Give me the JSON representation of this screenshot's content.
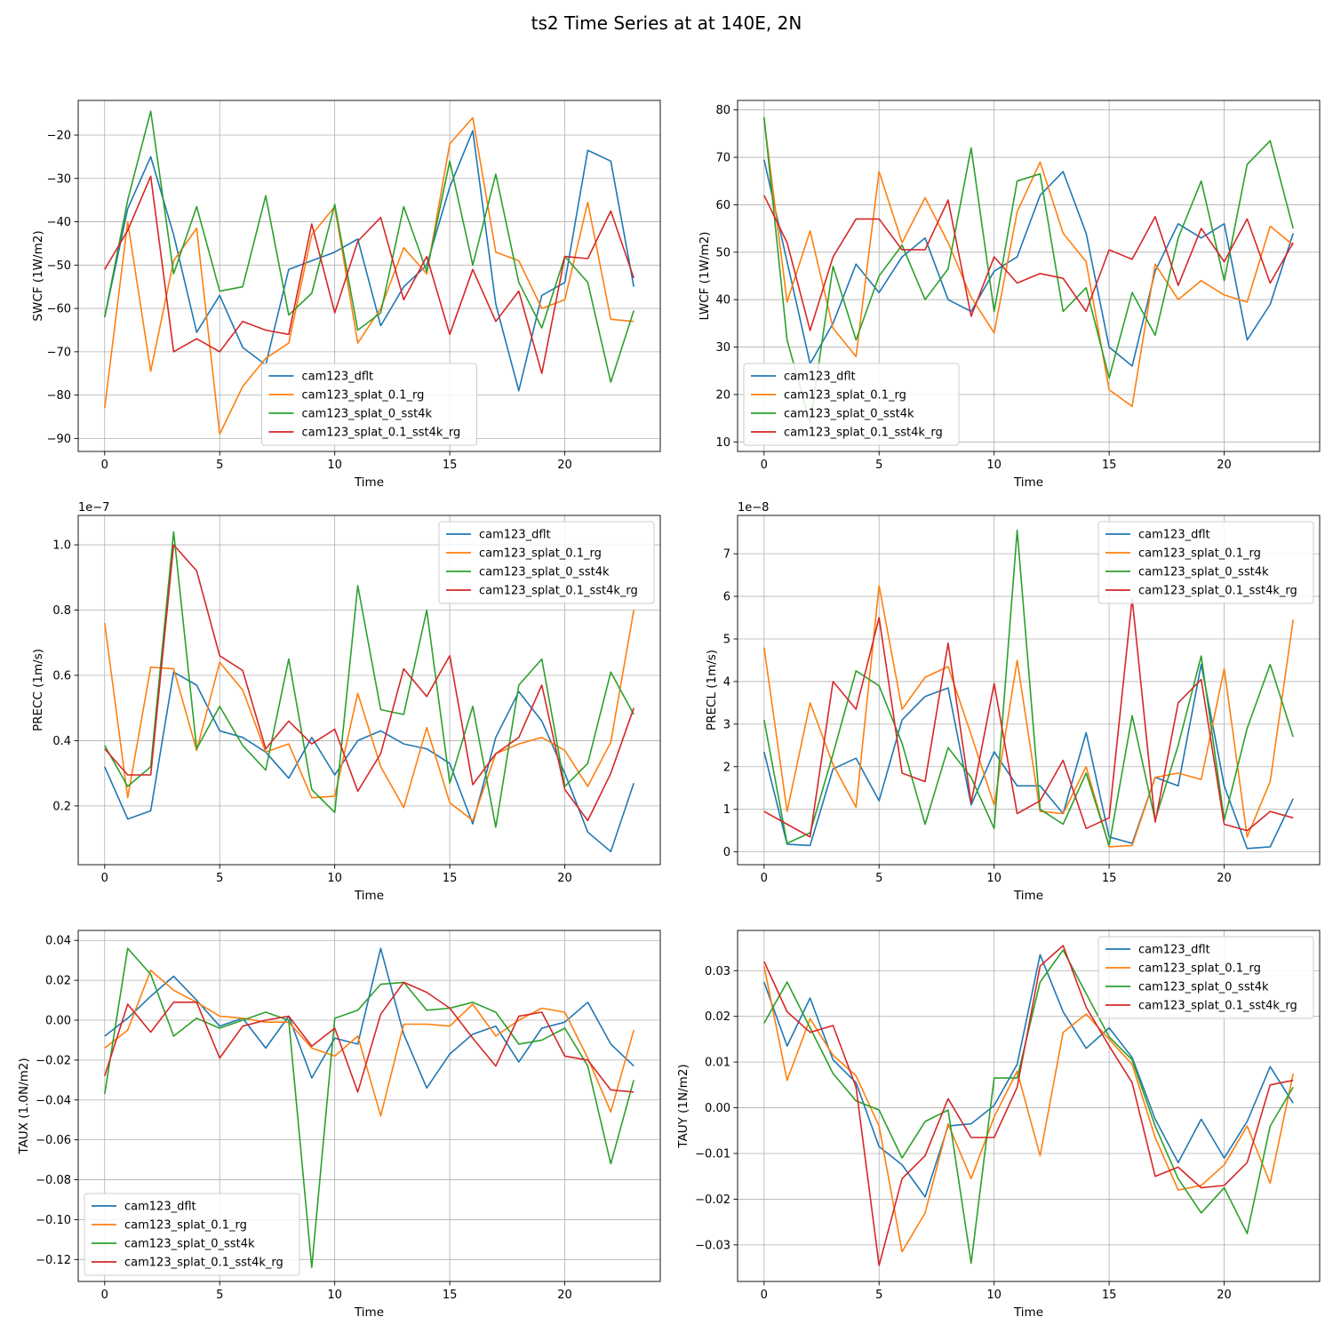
{
  "figure": {
    "title": "ts2 Time Series at at 140E, 2N"
  },
  "series_colors": [
    "#1f77b4",
    "#ff7f0e",
    "#2ca02c",
    "#d62728"
  ],
  "chart_data": [
    {
      "type": "line",
      "title": "",
      "xlabel": "Time",
      "ylabel": "SWCF (1W/m2)",
      "xlim": [
        -1.15,
        24.15
      ],
      "ylim": [
        -93,
        -12
      ],
      "xticks": [
        0,
        5,
        10,
        15,
        20
      ],
      "xtick_labels": [
        "0",
        "5",
        "10",
        "15",
        "20"
      ],
      "yticks": [
        -90,
        -80,
        -70,
        -60,
        -50,
        -40,
        -30,
        -20
      ],
      "ytick_labels": [
        "−90",
        "−80",
        "−70",
        "−60",
        "−50",
        "−40",
        "−30",
        "−20"
      ],
      "exponent_label": "",
      "grid": true,
      "legend_position": "lower-center",
      "x": [
        0,
        1,
        2,
        3,
        4,
        5,
        6,
        7,
        8,
        9,
        10,
        11,
        12,
        13,
        14,
        15,
        16,
        17,
        18,
        19,
        20,
        21,
        22,
        23
      ],
      "series": [
        {
          "name": "cam123_dflt",
          "values": [
            -62,
            -37,
            -25,
            -43,
            -65.5,
            -57,
            -69,
            -73,
            -51,
            -49,
            -47,
            -44,
            -64,
            -55,
            -50,
            -32,
            -19,
            -59,
            -79,
            -57,
            -54,
            -23.5,
            -26,
            -55
          ]
        },
        {
          "name": "cam123_splat_0.1_rg",
          "values": [
            -83,
            -40,
            -74.5,
            -49,
            -41.5,
            -89,
            -78,
            -71.5,
            -68,
            -43,
            -36.5,
            -68,
            -60,
            -46,
            -52,
            -22,
            -16,
            -47,
            -49,
            -60,
            -58,
            -35.5,
            -62.5,
            -63
          ]
        },
        {
          "name": "cam123_splat_0_sst4k",
          "values": [
            -62,
            -35,
            -14.5,
            -52,
            -36.5,
            -56,
            -55,
            -34,
            -61.5,
            -56.5,
            -36,
            -65,
            -61,
            -36.5,
            -51.5,
            -26,
            -50,
            -29,
            -54,
            -64.5,
            -48,
            -54,
            -77,
            -60.5
          ]
        },
        {
          "name": "cam123_splat_0.1_sst4k_rg",
          "values": [
            -51,
            -42,
            -29.5,
            -70,
            -67,
            -70,
            -63,
            -65,
            -66,
            -40.5,
            -61,
            -44.5,
            -39,
            -58,
            -48,
            -66,
            -51,
            -63,
            -56,
            -75,
            -48,
            -48.5,
            -37.5,
            -53
          ]
        }
      ]
    },
    {
      "type": "line",
      "title": "",
      "xlabel": "Time",
      "ylabel": "LWCF (1W/m2)",
      "xlim": [
        -1.15,
        24.15
      ],
      "ylim": [
        8,
        82
      ],
      "xticks": [
        0,
        5,
        10,
        15,
        20
      ],
      "xtick_labels": [
        "0",
        "5",
        "10",
        "15",
        "20"
      ],
      "yticks": [
        10,
        20,
        30,
        40,
        50,
        60,
        70,
        80
      ],
      "ytick_labels": [
        "10",
        "20",
        "30",
        "40",
        "50",
        "60",
        "70",
        "80"
      ],
      "exponent_label": "",
      "grid": true,
      "legend_position": "lower-left",
      "x": [
        0,
        1,
        2,
        3,
        4,
        5,
        6,
        7,
        8,
        9,
        10,
        11,
        12,
        13,
        14,
        15,
        16,
        17,
        18,
        19,
        20,
        21,
        22,
        23
      ],
      "series": [
        {
          "name": "cam123_dflt",
          "values": [
            69.5,
            48,
            26.5,
            35,
            47.5,
            41.5,
            49,
            53,
            40,
            37.5,
            46,
            49,
            62,
            67,
            54,
            30,
            26,
            46,
            56,
            53,
            56,
            31.5,
            39,
            54
          ]
        },
        {
          "name": "cam123_splat_0.1_rg",
          "values": [
            78,
            39.5,
            54.5,
            34,
            28,
            67,
            52,
            61.5,
            52,
            40.5,
            33,
            58.5,
            69,
            54,
            48,
            21,
            17.5,
            47.5,
            40,
            44,
            41,
            39.5,
            55.5,
            51.5
          ]
        },
        {
          "name": "cam123_splat_0_sst4k",
          "values": [
            78.5,
            31.5,
            14,
            47,
            31.5,
            45,
            51.5,
            40,
            46.5,
            72,
            37.5,
            65,
            66.5,
            37.5,
            42.5,
            23.5,
            41.5,
            32.5,
            53,
            65,
            44,
            68.5,
            73.5,
            55
          ]
        },
        {
          "name": "cam123_splat_0.1_sst4k_rg",
          "values": [
            62,
            52,
            33.5,
            49,
            57,
            57,
            50.5,
            50.5,
            61,
            36.5,
            49,
            43.5,
            45.5,
            44.5,
            37.5,
            50.5,
            48.5,
            57.5,
            43,
            55,
            48,
            57,
            43.5,
            52
          ]
        }
      ]
    },
    {
      "type": "line",
      "title": "",
      "xlabel": "Time",
      "ylabel": "PRECC (1m/s)",
      "xlim": [
        -1.15,
        24.15
      ],
      "ylim": [
        0.02,
        1.09
      ],
      "xticks": [
        0,
        5,
        10,
        15,
        20
      ],
      "xtick_labels": [
        "0",
        "5",
        "10",
        "15",
        "20"
      ],
      "yticks": [
        0.2,
        0.4,
        0.6,
        0.8,
        1.0
      ],
      "ytick_labels": [
        "0.2",
        "0.4",
        "0.6",
        "0.8",
        "1.0"
      ],
      "exponent_label": "1e−7",
      "grid": true,
      "legend_position": "upper-right",
      "x": [
        0,
        1,
        2,
        3,
        4,
        5,
        6,
        7,
        8,
        9,
        10,
        11,
        12,
        13,
        14,
        15,
        16,
        17,
        18,
        19,
        20,
        21,
        22,
        23
      ],
      "series": [
        {
          "name": "cam123_dflt",
          "values": [
            0.32,
            0.16,
            0.185,
            0.61,
            0.57,
            0.43,
            0.41,
            0.365,
            0.285,
            0.41,
            0.295,
            0.4,
            0.43,
            0.39,
            0.375,
            0.33,
            0.145,
            0.41,
            0.55,
            0.46,
            0.3,
            0.12,
            0.06,
            0.27
          ]
        },
        {
          "name": "cam123_splat_0.1_rg",
          "values": [
            0.76,
            0.225,
            0.625,
            0.62,
            0.37,
            0.64,
            0.555,
            0.365,
            0.39,
            0.225,
            0.23,
            0.545,
            0.32,
            0.195,
            0.44,
            0.21,
            0.155,
            0.36,
            0.39,
            0.41,
            0.37,
            0.26,
            0.395,
            0.8
          ]
        },
        {
          "name": "cam123_splat_0_sst4k",
          "values": [
            0.385,
            0.26,
            0.32,
            1.04,
            0.375,
            0.505,
            0.385,
            0.31,
            0.65,
            0.25,
            0.18,
            0.875,
            0.495,
            0.48,
            0.8,
            0.27,
            0.505,
            0.135,
            0.57,
            0.65,
            0.26,
            0.33,
            0.61,
            0.48
          ]
        },
        {
          "name": "cam123_splat_0.1_sst4k_rg",
          "values": [
            0.375,
            0.295,
            0.295,
            1.0,
            0.92,
            0.66,
            0.615,
            0.375,
            0.46,
            0.39,
            0.435,
            0.245,
            0.36,
            0.62,
            0.535,
            0.66,
            0.265,
            0.36,
            0.41,
            0.57,
            0.25,
            0.155,
            0.3,
            0.5
          ]
        }
      ]
    },
    {
      "type": "line",
      "title": "",
      "xlabel": "Time",
      "ylabel": "PRECL (1m/s)",
      "xlim": [
        -1.15,
        24.15
      ],
      "ylim": [
        -0.3,
        7.9
      ],
      "xticks": [
        0,
        5,
        10,
        15,
        20
      ],
      "xtick_labels": [
        "0",
        "5",
        "10",
        "15",
        "20"
      ],
      "yticks": [
        0,
        1,
        2,
        3,
        4,
        5,
        6,
        7
      ],
      "ytick_labels": [
        "0",
        "1",
        "2",
        "3",
        "4",
        "5",
        "6",
        "7"
      ],
      "exponent_label": "1e−8",
      "grid": true,
      "legend_position": "upper-right",
      "x": [
        0,
        1,
        2,
        3,
        4,
        5,
        6,
        7,
        8,
        9,
        10,
        11,
        12,
        13,
        14,
        15,
        16,
        17,
        18,
        19,
        20,
        21,
        22,
        23
      ],
      "series": [
        {
          "name": "cam123_dflt",
          "values": [
            2.35,
            0.18,
            0.15,
            1.95,
            2.2,
            1.2,
            3.1,
            3.65,
            3.85,
            1.1,
            2.35,
            1.55,
            1.55,
            0.9,
            2.8,
            0.35,
            0.2,
            1.75,
            1.55,
            4.4,
            1.55,
            0.08,
            0.12,
            1.25
          ]
        },
        {
          "name": "cam123_splat_0.1_rg",
          "values": [
            4.8,
            0.95,
            3.5,
            2.05,
            1.05,
            6.25,
            3.35,
            4.1,
            4.35,
            2.75,
            1.1,
            4.5,
            0.95,
            0.9,
            2.0,
            0.12,
            0.15,
            1.75,
            1.85,
            1.7,
            4.3,
            0.35,
            1.65,
            5.45
          ]
        },
        {
          "name": "cam123_splat_0_sst4k",
          "values": [
            3.1,
            0.2,
            0.45,
            2.3,
            4.25,
            3.9,
            2.55,
            0.65,
            2.45,
            1.75,
            0.55,
            7.55,
            1.0,
            0.65,
            1.85,
            0.15,
            3.2,
            0.75,
            2.5,
            4.6,
            0.75,
            2.9,
            4.4,
            2.7
          ]
        },
        {
          "name": "cam123_splat_0.1_sst4k_rg",
          "values": [
            0.95,
            0.65,
            0.35,
            4.0,
            3.35,
            5.5,
            1.85,
            1.65,
            4.9,
            1.15,
            3.95,
            0.9,
            1.2,
            2.15,
            0.55,
            0.8,
            5.95,
            0.7,
            3.5,
            4.05,
            0.65,
            0.5,
            0.95,
            0.8
          ]
        }
      ]
    },
    {
      "type": "line",
      "title": "",
      "xlabel": "Time",
      "ylabel": "TAUX (1.0N/m2)",
      "xlim": [
        -1.15,
        24.15
      ],
      "ylim": [
        -0.131,
        0.045
      ],
      "xticks": [
        0,
        5,
        10,
        15,
        20
      ],
      "xtick_labels": [
        "0",
        "5",
        "10",
        "15",
        "20"
      ],
      "yticks": [
        -0.12,
        -0.1,
        -0.08,
        -0.06,
        -0.04,
        -0.02,
        0.0,
        0.02,
        0.04
      ],
      "ytick_labels": [
        "−0.12",
        "−0.10",
        "−0.08",
        "−0.06",
        "−0.04",
        "−0.02",
        "0.00",
        "0.02",
        "0.04"
      ],
      "exponent_label": "",
      "grid": true,
      "legend_position": "lower-left",
      "x": [
        0,
        1,
        2,
        3,
        4,
        5,
        6,
        7,
        8,
        9,
        10,
        11,
        12,
        13,
        14,
        15,
        16,
        17,
        18,
        19,
        20,
        21,
        22,
        23
      ],
      "series": [
        {
          "name": "cam123_dflt",
          "values": [
            -0.008,
            0.001,
            0.012,
            0.022,
            0.01,
            -0.003,
            0.001,
            -0.014,
            0.002,
            -0.029,
            -0.009,
            -0.012,
            0.036,
            -0.007,
            -0.034,
            -0.017,
            -0.007,
            -0.003,
            -0.021,
            -0.004,
            -0.001,
            0.009,
            -0.012,
            -0.023
          ]
        },
        {
          "name": "cam123_splat_0.1_rg",
          "values": [
            -0.014,
            -0.005,
            0.025,
            0.015,
            0.009,
            0.002,
            0.001,
            -0.001,
            -0.001,
            -0.014,
            -0.018,
            -0.008,
            -0.048,
            -0.002,
            -0.002,
            -0.003,
            0.008,
            -0.008,
            0.0,
            0.006,
            0.004,
            -0.019,
            -0.046,
            -0.005
          ]
        },
        {
          "name": "cam123_splat_0_sst4k",
          "values": [
            -0.037,
            0.036,
            0.023,
            -0.008,
            0.001,
            -0.004,
            0.0,
            0.004,
            0.0,
            -0.124,
            0.001,
            0.005,
            0.018,
            0.019,
            0.005,
            0.006,
            0.009,
            0.004,
            -0.012,
            -0.01,
            -0.004,
            -0.023,
            -0.072,
            -0.03
          ]
        },
        {
          "name": "cam123_splat_0.1_sst4k_rg",
          "values": [
            -0.028,
            0.008,
            -0.006,
            0.009,
            0.009,
            -0.019,
            -0.003,
            0.0,
            0.002,
            -0.013,
            -0.004,
            -0.036,
            0.003,
            0.019,
            0.014,
            0.006,
            -0.009,
            -0.023,
            0.002,
            0.004,
            -0.018,
            -0.02,
            -0.035,
            -0.036
          ]
        }
      ]
    },
    {
      "type": "line",
      "title": "",
      "xlabel": "Time",
      "ylabel": "TAUY (1N/m2)",
      "xlim": [
        -1.15,
        24.15
      ],
      "ylim": [
        -0.038,
        0.0388
      ],
      "xticks": [
        0,
        5,
        10,
        15,
        20
      ],
      "xtick_labels": [
        "0",
        "5",
        "10",
        "15",
        "20"
      ],
      "yticks": [
        -0.03,
        -0.02,
        -0.01,
        0.0,
        0.01,
        0.02,
        0.03
      ],
      "ytick_labels": [
        "−0.03",
        "−0.02",
        "−0.01",
        "0.00",
        "0.01",
        "0.02",
        "0.03"
      ],
      "exponent_label": "",
      "grid": true,
      "legend_position": "upper-right",
      "x": [
        0,
        1,
        2,
        3,
        4,
        5,
        6,
        7,
        8,
        9,
        10,
        11,
        12,
        13,
        14,
        15,
        16,
        17,
        18,
        19,
        20,
        21,
        22,
        23
      ],
      "series": [
        {
          "name": "cam123_dflt",
          "values": [
            0.0275,
            0.0135,
            0.024,
            0.0105,
            0.0055,
            -0.0085,
            -0.0125,
            -0.0195,
            -0.004,
            -0.0035,
            0.0005,
            0.0095,
            0.0335,
            0.021,
            0.013,
            0.0175,
            0.011,
            -0.0025,
            -0.012,
            -0.0025,
            -0.011,
            -0.003,
            0.009,
            0.001
          ]
        },
        {
          "name": "cam123_splat_0.1_rg",
          "values": [
            0.031,
            0.006,
            0.0195,
            0.0115,
            0.007,
            -0.004,
            -0.0315,
            -0.023,
            -0.0035,
            -0.0155,
            -0.002,
            0.008,
            -0.0105,
            0.0165,
            0.0205,
            0.015,
            0.0095,
            -0.0065,
            -0.018,
            -0.017,
            -0.0125,
            -0.004,
            -0.0165,
            0.0075
          ]
        },
        {
          "name": "cam123_splat_0_sst4k",
          "values": [
            0.0185,
            0.0275,
            0.0175,
            0.0075,
            0.0015,
            -0.0005,
            -0.011,
            -0.003,
            -0.0005,
            -0.034,
            0.0065,
            0.0065,
            0.0275,
            0.0345,
            0.025,
            0.0155,
            0.0105,
            -0.004,
            -0.0155,
            -0.023,
            -0.0175,
            -0.0275,
            -0.004,
            0.0045
          ]
        },
        {
          "name": "cam123_splat_0.1_sst4k_rg",
          "values": [
            0.032,
            0.021,
            0.0165,
            0.018,
            0.0045,
            -0.0345,
            -0.0155,
            -0.0105,
            0.002,
            -0.0065,
            -0.0065,
            0.0045,
            0.031,
            0.0355,
            0.022,
            0.0135,
            0.0055,
            -0.015,
            -0.013,
            -0.0175,
            -0.017,
            -0.012,
            0.005,
            0.006
          ]
        }
      ]
    }
  ]
}
